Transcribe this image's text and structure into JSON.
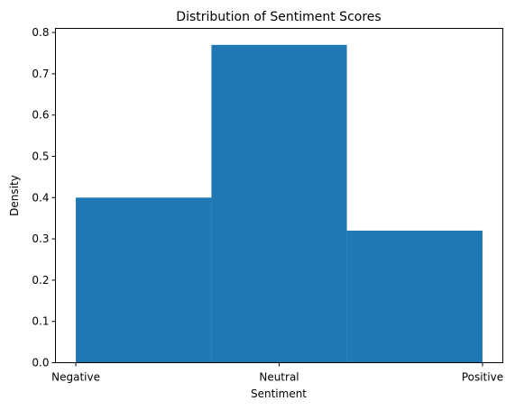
{
  "chart_data": {
    "type": "bar",
    "title": "Distribution of Sentiment Scores",
    "xlabel": "Sentiment",
    "ylabel": "Density",
    "bins": [
      {
        "from": 0,
        "to": 0.667,
        "value": 0.4
      },
      {
        "from": 0.667,
        "to": 1.333,
        "value": 0.77
      },
      {
        "from": 1.333,
        "to": 2,
        "value": 0.32
      }
    ],
    "xticks": [
      {
        "value": 0,
        "label": "Negative"
      },
      {
        "value": 1,
        "label": "Neutral"
      },
      {
        "value": 2,
        "label": "Positive"
      }
    ],
    "xlim": [
      -0.1,
      2.1
    ],
    "yticks": [
      0.0,
      0.1,
      0.2,
      0.3,
      0.4,
      0.5,
      0.6,
      0.7,
      0.8
    ],
    "ytick_labels": [
      "0.0",
      "0.1",
      "0.2",
      "0.3",
      "0.4",
      "0.5",
      "0.6",
      "0.7",
      "0.8"
    ],
    "ylim": [
      0,
      0.81
    ],
    "bar_color": "#1f77b4",
    "grid": false,
    "legend": false
  }
}
